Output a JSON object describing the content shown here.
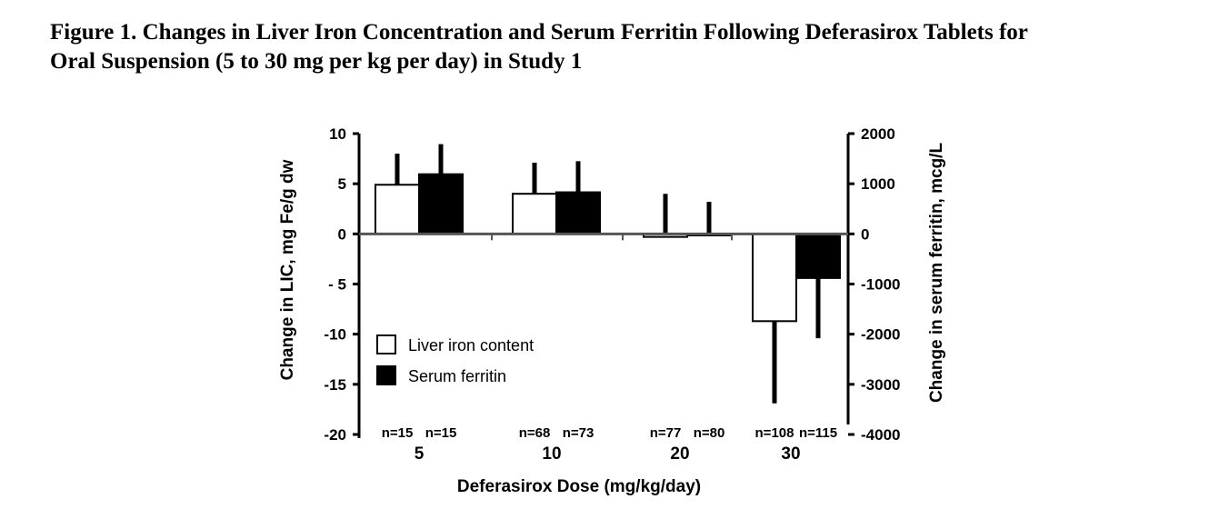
{
  "caption": {
    "line1": "Figure 1.   Changes in Liver Iron Concentration and Serum Ferritin Following Deferasirox Tablets for",
    "line2": "Oral Suspension (5 to 30 mg per kg per day) in Study 1"
  },
  "chart_data": {
    "type": "bar",
    "categories": [
      "5",
      "10",
      "20",
      "30"
    ],
    "xlabel": "Deferasirox Dose (mg/kg/day)",
    "ylabel_left": "Change in LIC, mg Fe/g dw",
    "ylabel_right": "Change in serum ferritin, mcg/L",
    "ylim_left": [
      -20,
      10
    ],
    "ylim_right": [
      -4000,
      2000
    ],
    "yticks_left": [
      "10",
      "5",
      "0",
      "- 5",
      "-10",
      "-15",
      "-20"
    ],
    "yticks_right": [
      "2000",
      "1000",
      "0",
      "-1000",
      "-2000",
      "-3000",
      "-4000"
    ],
    "legend_position": "bottom-left",
    "grid": false,
    "series": [
      {
        "name": "Liver iron content",
        "axis": "left",
        "color": "#ffffff",
        "values": [
          4.9,
          4.0,
          -0.3,
          -8.7
        ],
        "error_tip": [
          8.0,
          7.1,
          4.0,
          -16.9
        ],
        "n_labels": [
          "n=15",
          "n=68",
          "n=77",
          "n=108"
        ]
      },
      {
        "name": "Serum ferritin",
        "axis": "right",
        "color": "#000000",
        "values": [
          1190,
          830,
          -30,
          -880
        ],
        "error_tip": [
          1790,
          1450,
          640,
          -2080
        ],
        "n_labels": [
          "n=15",
          "n=73",
          "n=80",
          "n=115"
        ]
      }
    ]
  }
}
